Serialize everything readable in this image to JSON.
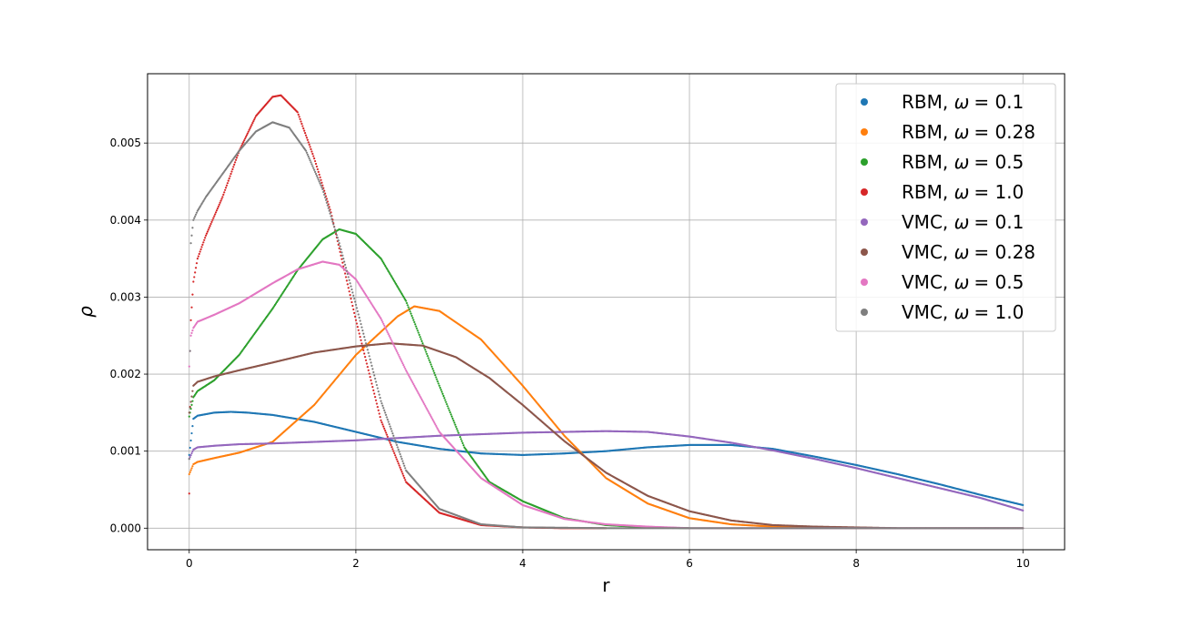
{
  "chart_data": {
    "type": "scatter",
    "title": "",
    "xlabel": "r",
    "ylabel": "ρ",
    "xlim": [
      -0.5,
      10.5
    ],
    "ylim": [
      -0.00028,
      0.0059
    ],
    "xticks": [
      0,
      2,
      4,
      6,
      8,
      10
    ],
    "xtick_labels": [
      "0",
      "2",
      "4",
      "6",
      "8",
      "10"
    ],
    "yticks": [
      0.0,
      0.001,
      0.002,
      0.003,
      0.004,
      0.005
    ],
    "ytick_labels": [
      "0.000",
      "0.001",
      "0.002",
      "0.003",
      "0.004",
      "0.005"
    ],
    "grid": true,
    "legend_position": "top-right",
    "series": [
      {
        "name": "RBM, ω = 0.1",
        "legend_prefix": "RBM, ",
        "legend_omega": "ω",
        "legend_value": "= 0.1",
        "color": "#1f77b4",
        "x": [
          0,
          0.05,
          0.1,
          0.2,
          0.3,
          0.5,
          0.7,
          1.0,
          1.5,
          2.0,
          2.5,
          3.0,
          3.5,
          4.0,
          4.5,
          5.0,
          5.5,
          6.0,
          6.5,
          7.0,
          7.5,
          8.0,
          8.5,
          9.0,
          9.5,
          10.0
        ],
        "y": [
          0.00095,
          0.00142,
          0.00146,
          0.00148,
          0.0015,
          0.00151,
          0.0015,
          0.00147,
          0.00138,
          0.00125,
          0.00112,
          0.00103,
          0.00097,
          0.00095,
          0.00097,
          0.001,
          0.00105,
          0.00108,
          0.00108,
          0.00103,
          0.00093,
          0.00082,
          0.0007,
          0.00057,
          0.00043,
          0.0003
        ]
      },
      {
        "name": "RBM, ω = 0.28",
        "legend_prefix": "RBM, ",
        "legend_omega": "ω",
        "legend_value": "= 0.28",
        "color": "#ff7f0e",
        "x": [
          0,
          0.05,
          0.1,
          0.3,
          0.6,
          1.0,
          1.5,
          2.0,
          2.5,
          2.7,
          3.0,
          3.5,
          4.0,
          4.5,
          5.0,
          5.5,
          6.0,
          6.5,
          7.0,
          7.5,
          8.0,
          8.4
        ],
        "y": [
          0.0007,
          0.00083,
          0.00086,
          0.00091,
          0.00098,
          0.00112,
          0.0016,
          0.00225,
          0.00275,
          0.00288,
          0.00282,
          0.00245,
          0.00185,
          0.0012,
          0.00065,
          0.00032,
          0.00013,
          5e-05,
          2e-05,
          1e-05,
          0.0,
          0.0
        ]
      },
      {
        "name": "RBM, ω = 0.5",
        "legend_prefix": "RBM, ",
        "legend_omega": "ω",
        "legend_value": "= 0.5",
        "color": "#2ca02c",
        "x": [
          0,
          0.05,
          0.1,
          0.3,
          0.6,
          1.0,
          1.3,
          1.6,
          1.8,
          2.0,
          2.3,
          2.6,
          3.0,
          3.3,
          3.6,
          4.0,
          4.5,
          5.0,
          5.5,
          6.0
        ],
        "y": [
          0.00145,
          0.0017,
          0.00178,
          0.00192,
          0.00225,
          0.00285,
          0.00335,
          0.00375,
          0.00388,
          0.00382,
          0.0035,
          0.00295,
          0.00185,
          0.00105,
          0.0006,
          0.00035,
          0.00013,
          4e-05,
          1e-05,
          0.0
        ]
      },
      {
        "name": "RBM, ω = 1.0",
        "legend_prefix": "RBM, ",
        "legend_omega": "ω",
        "legend_value": "= 1.0",
        "color": "#d62728",
        "x": [
          0,
          0.02,
          0.05,
          0.1,
          0.2,
          0.4,
          0.6,
          0.8,
          1.0,
          1.1,
          1.3,
          1.5,
          1.7,
          2.0,
          2.3,
          2.6,
          3.0,
          3.5,
          4.0,
          4.5,
          5.0
        ],
        "y": [
          0.00045,
          0.0027,
          0.0032,
          0.0035,
          0.0038,
          0.0043,
          0.0049,
          0.00535,
          0.0056,
          0.00562,
          0.0054,
          0.0048,
          0.0041,
          0.0027,
          0.0014,
          0.0006,
          0.0002,
          4e-05,
          1e-05,
          0.0,
          0.0
        ]
      },
      {
        "name": "VMC, ω = 0.1",
        "legend_prefix": "VMC, ",
        "legend_omega": "ω",
        "legend_value": "= 0.1",
        "color": "#9467bd",
        "x": [
          0,
          0.05,
          0.1,
          0.3,
          0.6,
          1.0,
          2.0,
          3.0,
          4.0,
          4.5,
          5.0,
          5.5,
          6.0,
          6.5,
          7.0,
          7.5,
          8.0,
          8.5,
          9.0,
          9.5,
          10.0
        ],
        "y": [
          0.0009,
          0.00102,
          0.00105,
          0.00107,
          0.00109,
          0.0011,
          0.00114,
          0.0012,
          0.00124,
          0.00125,
          0.00126,
          0.00125,
          0.00119,
          0.00111,
          0.00101,
          0.0009,
          0.00078,
          0.00065,
          0.00052,
          0.00039,
          0.00023
        ]
      },
      {
        "name": "VMC, ω = 0.28",
        "legend_prefix": "VMC, ",
        "legend_omega": "ω",
        "legend_value": "= 0.28",
        "color": "#8c564b",
        "x": [
          0,
          0.05,
          0.1,
          0.3,
          0.6,
          1.0,
          1.5,
          2.0,
          2.4,
          2.8,
          3.2,
          3.6,
          4.0,
          4.5,
          5.0,
          5.5,
          6.0,
          6.5,
          7.0,
          7.5,
          8.0,
          8.5,
          9.0,
          10.0
        ],
        "y": [
          0.0015,
          0.00185,
          0.0019,
          0.00197,
          0.00205,
          0.00215,
          0.00228,
          0.00236,
          0.0024,
          0.00237,
          0.00222,
          0.00195,
          0.0016,
          0.00113,
          0.00072,
          0.00042,
          0.00022,
          0.0001,
          4e-05,
          2e-05,
          1e-05,
          0.0,
          0.0,
          0.0
        ]
      },
      {
        "name": "VMC, ω = 0.5",
        "legend_prefix": "VMC, ",
        "legend_omega": "ω",
        "legend_value": "= 0.5",
        "color": "#e377c2",
        "x": [
          0,
          0.02,
          0.05,
          0.1,
          0.3,
          0.6,
          1.0,
          1.3,
          1.6,
          1.8,
          2.0,
          2.3,
          2.6,
          3.0,
          3.5,
          4.0,
          4.5,
          5.0,
          5.5,
          6.0,
          7.0,
          8.0,
          9.0,
          10.0
        ],
        "y": [
          0.0021,
          0.0025,
          0.0026,
          0.00268,
          0.00277,
          0.00292,
          0.00318,
          0.00336,
          0.00346,
          0.00342,
          0.00323,
          0.00272,
          0.00205,
          0.00125,
          0.00065,
          0.0003,
          0.00012,
          5e-05,
          2e-05,
          0.0,
          0.0,
          0.0,
          0.0,
          0.0
        ]
      },
      {
        "name": "VMC, ω = 1.0",
        "legend_prefix": "VMC, ",
        "legend_omega": "ω",
        "legend_value": "= 1.0",
        "color": "#7f7f7f",
        "x": [
          0,
          0.02,
          0.05,
          0.1,
          0.2,
          0.4,
          0.6,
          0.8,
          1.0,
          1.2,
          1.4,
          1.6,
          1.8,
          2.0,
          2.3,
          2.6,
          3.0,
          3.5,
          4.0,
          5.0,
          6.0,
          7.0,
          8.0,
          9.0,
          10.0
        ],
        "y": [
          0.0009,
          0.0037,
          0.004,
          0.00412,
          0.0043,
          0.0046,
          0.0049,
          0.00515,
          0.00527,
          0.0052,
          0.0049,
          0.0044,
          0.0037,
          0.0029,
          0.00165,
          0.00075,
          0.00025,
          5e-05,
          1e-05,
          0.0,
          0.0,
          0.0,
          0.0,
          0.0,
          0.0
        ]
      }
    ]
  }
}
